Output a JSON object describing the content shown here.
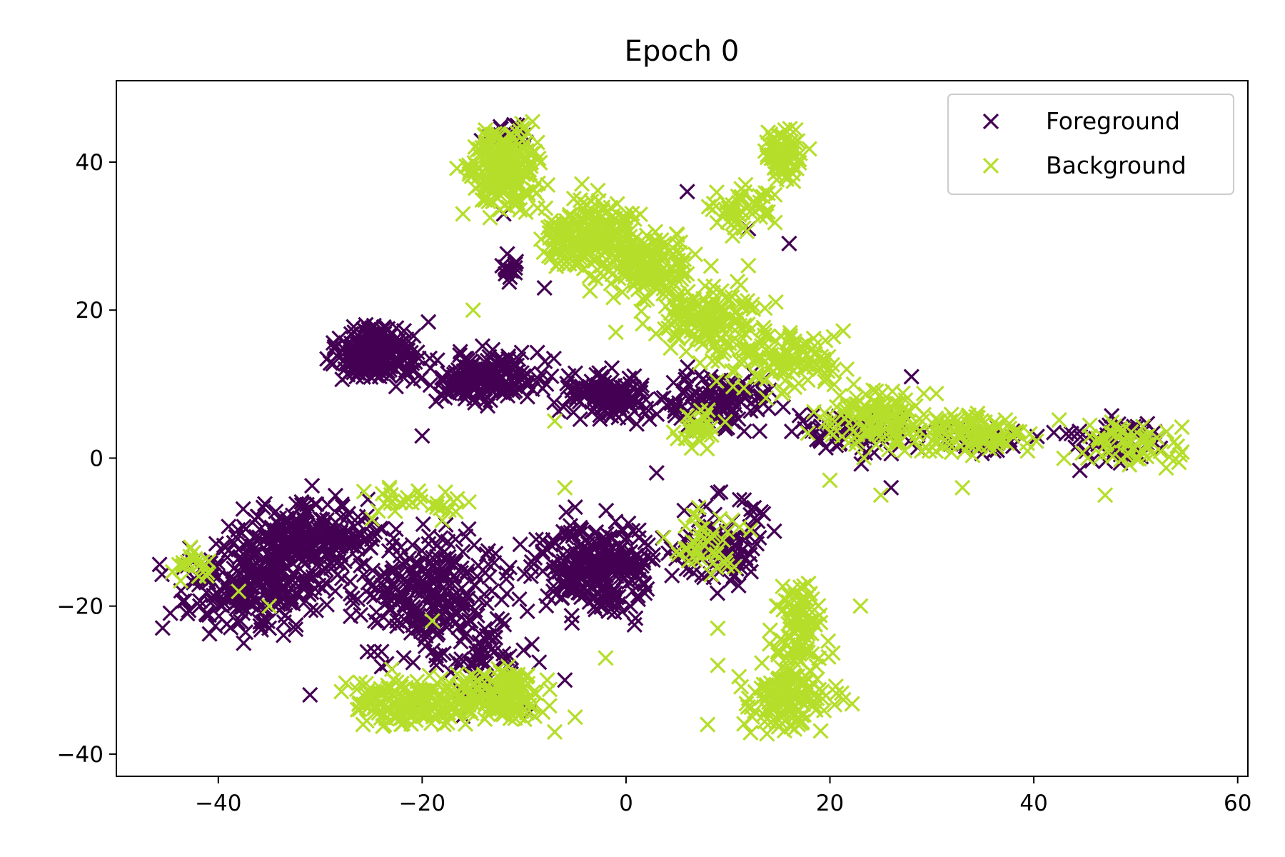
{
  "chart_data": {
    "type": "scatter",
    "title": "Epoch 0",
    "xlabel": "",
    "ylabel": "",
    "xlim": [
      -50,
      61
    ],
    "ylim": [
      -43,
      51
    ],
    "xticks": [
      -40,
      -20,
      0,
      20,
      40,
      60
    ],
    "yticks": [
      -40,
      -20,
      0,
      20,
      40
    ],
    "xtick_labels": [
      "−40",
      "−20",
      "0",
      "20",
      "40",
      "60"
    ],
    "ytick_labels": [
      "−40",
      "−20",
      "0",
      "20",
      "40"
    ],
    "marker": "x",
    "grid": false,
    "legend": {
      "position": "top-right"
    },
    "series": [
      {
        "name": "Foreground",
        "color": "#440154",
        "clusters": [
          {
            "x": [
              -29,
              -20
            ],
            "y": [
              10,
              18
            ],
            "n": 220
          },
          {
            "x": [
              -20,
              -8
            ],
            "y": [
              7,
              15
            ],
            "n": 200
          },
          {
            "x": [
              -8,
              4
            ],
            "y": [
              5,
              12
            ],
            "n": 150
          },
          {
            "x": [
              3,
              15
            ],
            "y": [
              3,
              12
            ],
            "n": 120
          },
          {
            "x": [
              15,
              30
            ],
            "y": [
              0,
              7
            ],
            "n": 80
          },
          {
            "x": [
              30,
              40
            ],
            "y": [
              0,
              5
            ],
            "n": 40
          },
          {
            "x": [
              42,
              53
            ],
            "y": [
              -2,
              6
            ],
            "n": 60
          },
          {
            "x": [
              -45,
              -28
            ],
            "y": [
              -24,
              -10
            ],
            "n": 260
          },
          {
            "x": [
              -38,
              -24
            ],
            "y": [
              -16,
              -5
            ],
            "n": 220
          },
          {
            "x": [
              -28,
              -10
            ],
            "y": [
              -28,
              -8
            ],
            "n": 280
          },
          {
            "x": [
              -10,
              4
            ],
            "y": [
              -22,
              -8
            ],
            "n": 280
          },
          {
            "x": [
              4,
              14
            ],
            "y": [
              -18,
              -5
            ],
            "n": 110
          },
          {
            "x": [
              -20,
              -8
            ],
            "y": [
              -35,
              -22
            ],
            "n": 60
          },
          {
            "x": [
              -14,
              -9
            ],
            "y": [
              40,
              46
            ],
            "n": 25
          },
          {
            "x": [
              -13,
              -10
            ],
            "y": [
              23,
              28
            ],
            "n": 15
          }
        ],
        "points": [
          {
            "x": -31,
            "y": -32
          },
          {
            "x": -20,
            "y": 3
          },
          {
            "x": 6,
            "y": 36
          },
          {
            "x": -8,
            "y": 23
          },
          {
            "x": 3,
            "y": -2
          },
          {
            "x": -6,
            "y": -30
          },
          {
            "x": 12,
            "y": 31
          },
          {
            "x": 16,
            "y": 29
          },
          {
            "x": 28,
            "y": 11
          },
          {
            "x": 26,
            "y": -4
          },
          {
            "x": -12,
            "y": 33
          }
        ]
      },
      {
        "name": "Background",
        "color": "#b5de2b",
        "clusters": [
          {
            "x": [
              -16,
              -8
            ],
            "y": [
              33,
              45
            ],
            "n": 220
          },
          {
            "x": [
              -9,
              2
            ],
            "y": [
              24,
              36
            ],
            "n": 200
          },
          {
            "x": [
              -3,
              7
            ],
            "y": [
              20,
              32
            ],
            "n": 160
          },
          {
            "x": [
              2,
              14
            ],
            "y": [
              14,
              24
            ],
            "n": 140
          },
          {
            "x": [
              8,
              22
            ],
            "y": [
              8,
              18
            ],
            "n": 120
          },
          {
            "x": [
              18,
              32
            ],
            "y": [
              0,
              10
            ],
            "n": 130
          },
          {
            "x": [
              28,
              40
            ],
            "y": [
              0,
              7
            ],
            "n": 100
          },
          {
            "x": [
              42,
              56
            ],
            "y": [
              -3,
              7
            ],
            "n": 60
          },
          {
            "x": [
              13,
              18
            ],
            "y": [
              36,
              46
            ],
            "n": 70
          },
          {
            "x": [
              8,
              15
            ],
            "y": [
              30,
              38
            ],
            "n": 50
          },
          {
            "x": [
              -28,
              -14
            ],
            "y": [
              -37,
              -29
            ],
            "n": 160
          },
          {
            "x": [
              -18,
              -7
            ],
            "y": [
              -36,
              -28
            ],
            "n": 160
          },
          {
            "x": [
              11,
              21
            ],
            "y": [
              -38,
              -27
            ],
            "n": 140
          },
          {
            "x": [
              14,
              20
            ],
            "y": [
              -30,
              -16
            ],
            "n": 100
          },
          {
            "x": [
              4,
              12
            ],
            "y": [
              -17,
              -6
            ],
            "n": 40
          },
          {
            "x": [
              -45,
              -40
            ],
            "y": [
              -17,
              -12
            ],
            "n": 20
          },
          {
            "x": [
              -26,
              -14
            ],
            "y": [
              -9,
              -3
            ],
            "n": 30
          },
          {
            "x": [
              4,
              10
            ],
            "y": [
              1,
              7
            ],
            "n": 30
          }
        ],
        "points": [
          {
            "x": 23,
            "y": -20
          },
          {
            "x": -2,
            "y": -27
          },
          {
            "x": 8,
            "y": -36
          },
          {
            "x": -7,
            "y": -37
          },
          {
            "x": -5,
            "y": -35
          },
          {
            "x": -19,
            "y": -22
          },
          {
            "x": -35,
            "y": -20
          },
          {
            "x": -38,
            "y": -18
          },
          {
            "x": -15,
            "y": 20
          },
          {
            "x": -7,
            "y": 5
          },
          {
            "x": -1,
            "y": 17
          },
          {
            "x": 20,
            "y": -3
          },
          {
            "x": 25,
            "y": -5
          },
          {
            "x": 33,
            "y": -4
          },
          {
            "x": 47,
            "y": -5
          },
          {
            "x": 12,
            "y": 26
          },
          {
            "x": -16,
            "y": 33
          },
          {
            "x": 9,
            "y": -28
          },
          {
            "x": 9,
            "y": -23
          },
          {
            "x": -6,
            "y": -4
          }
        ]
      }
    ]
  }
}
